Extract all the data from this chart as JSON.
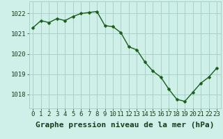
{
  "x": [
    0,
    1,
    2,
    3,
    4,
    5,
    6,
    7,
    8,
    9,
    10,
    11,
    12,
    13,
    14,
    15,
    16,
    17,
    18,
    19,
    20,
    21,
    22,
    23
  ],
  "y": [
    1021.3,
    1021.65,
    1021.55,
    1021.75,
    1021.65,
    1021.85,
    1022.0,
    1022.05,
    1022.1,
    1021.4,
    1021.35,
    1021.05,
    1020.35,
    1020.2,
    1019.6,
    1019.15,
    1018.85,
    1018.25,
    1017.75,
    1017.65,
    1018.1,
    1018.55,
    1018.85,
    1019.3
  ],
  "line_color": "#1a5c1a",
  "marker_color": "#1a5c1a",
  "bg_color": "#cef0e8",
  "grid_color": "#aacfc8",
  "xlabel": "Graphe pression niveau de la mer (hPa)",
  "xlabel_fontsize": 8,
  "ylim": [
    1017.3,
    1022.6
  ],
  "yticks": [
    1018,
    1019,
    1020,
    1021,
    1022
  ],
  "xticks": [
    0,
    1,
    2,
    3,
    4,
    5,
    6,
    7,
    8,
    9,
    10,
    11,
    12,
    13,
    14,
    15,
    16,
    17,
    18,
    19,
    20,
    21,
    22,
    23
  ],
  "tick_fontsize": 6.5,
  "line_width": 1.0,
  "marker_size": 2.5
}
